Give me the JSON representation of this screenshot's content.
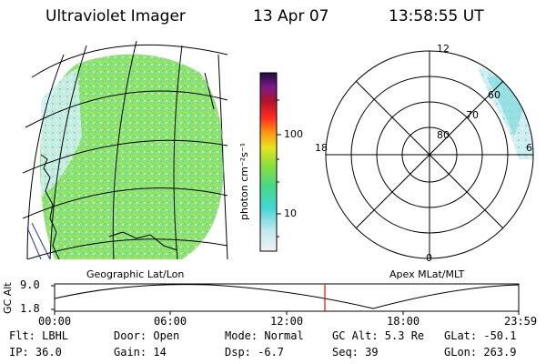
{
  "header": {
    "title": "Ultraviolet Imager",
    "date": "13 Apr 07",
    "time": "13:58:55 UT"
  },
  "colorbar": {
    "unit": "photon cm⁻²s⁻¹",
    "ticks": [
      "100",
      "10"
    ]
  },
  "map_labels": {
    "geo": "Geographic Lat/Lon",
    "apex": "Apex MLat/MLT"
  },
  "polar": {
    "top": "12",
    "bottom": "0",
    "left": "18",
    "right": "6",
    "rings": [
      "80",
      "70",
      "60"
    ]
  },
  "altitude_plot": {
    "ylabel": "GC Alt",
    "yticks": [
      "9.0",
      "1.8"
    ],
    "xticks": [
      "00:00",
      "06:00",
      "12:00",
      "18:00",
      "23:59"
    ]
  },
  "info": {
    "filter": "Flt: LBHL",
    "ip": "IP: 36.0",
    "door": "Door: Open",
    "gain": "Gain: 14",
    "mode": "Mode: Normal",
    "dsp": "Dsp:   -6.7",
    "gcalt": "GC Alt: 5.3 Re",
    "seq": "Seq: 39",
    "glat": "GLat: -50.1",
    "glon": "GLon: 263.9"
  },
  "colors": {
    "current_time_marker": "#d11",
    "aurora_green": "#7ee46a",
    "aurora_cyan": "#7fdcdc"
  }
}
